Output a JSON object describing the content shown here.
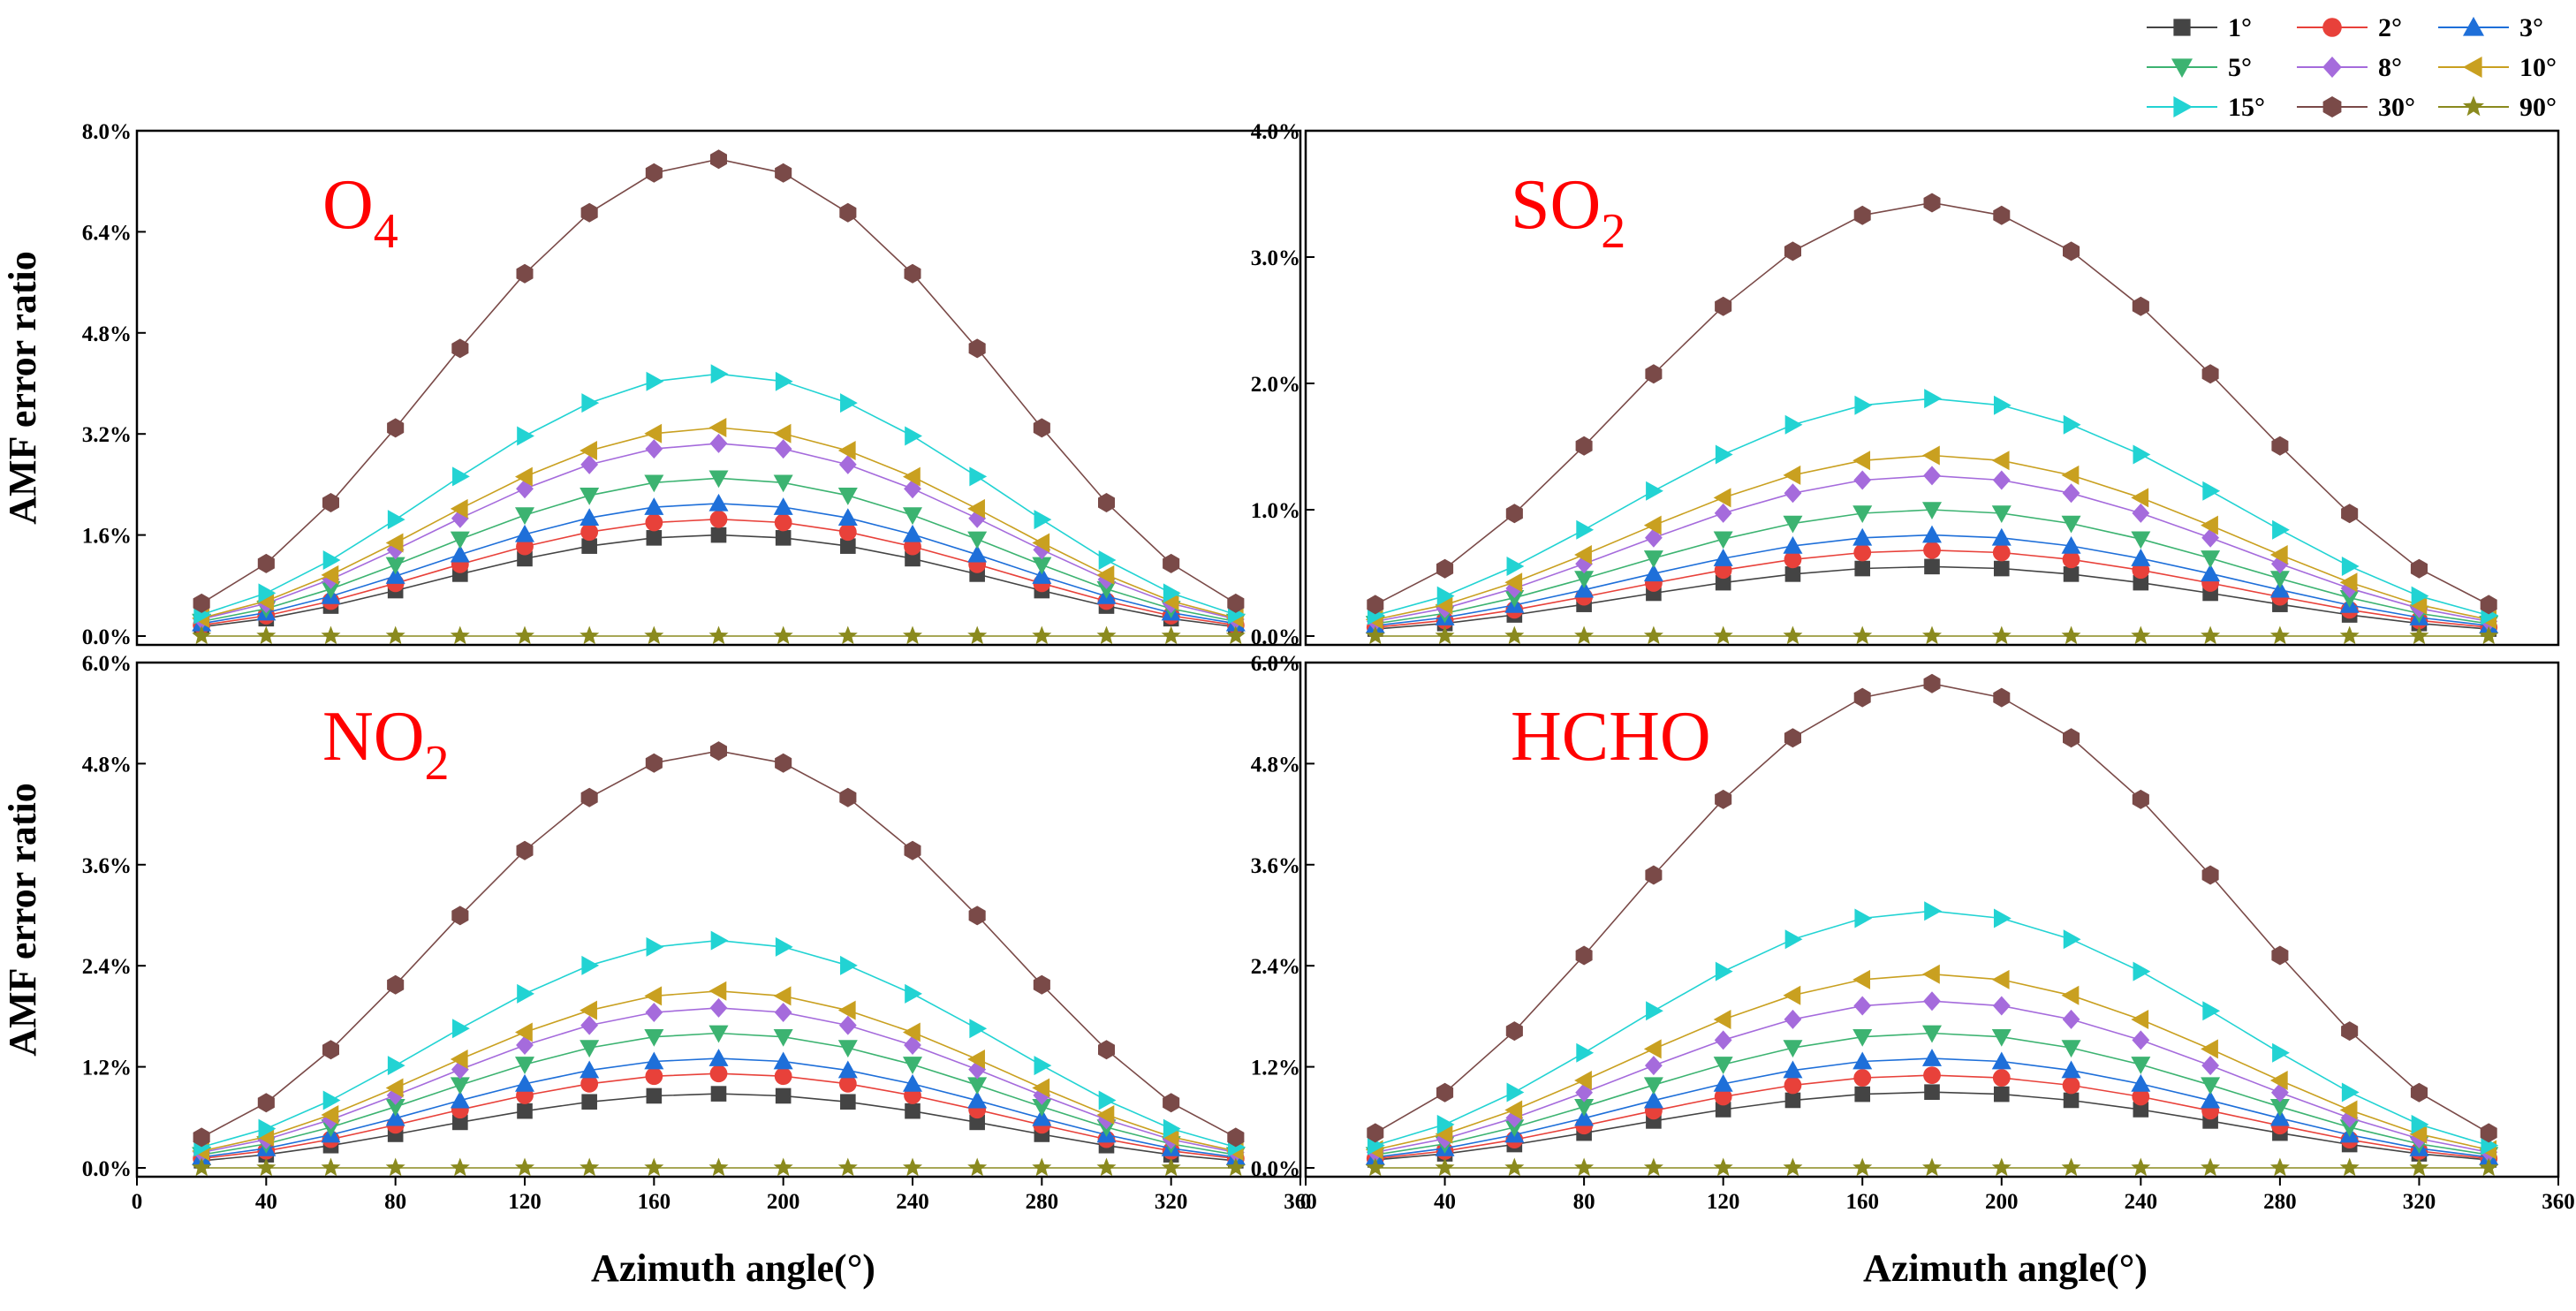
{
  "chart_data": {
    "type": "line",
    "x": [
      20,
      40,
      60,
      80,
      100,
      120,
      140,
      160,
      180,
      200,
      220,
      240,
      260,
      280,
      300,
      320,
      340
    ],
    "xlabel": "Azimuth angle(°)",
    "ylabel": "AMF error ratio",
    "xlim": [
      0,
      360
    ],
    "xticks": [
      "0",
      "40",
      "80",
      "120",
      "160",
      "200",
      "240",
      "280",
      "320",
      "360"
    ],
    "legend": {
      "position": "top-right",
      "entries": [
        {
          "label": "1°",
          "color": "#444444",
          "marker": "square"
        },
        {
          "label": "2°",
          "color": "#e8413a",
          "marker": "circle"
        },
        {
          "label": "3°",
          "color": "#1e6fd9",
          "marker": "triangle-up"
        },
        {
          "label": "5°",
          "color": "#3cb371",
          "marker": "triangle-down"
        },
        {
          "label": "8°",
          "color": "#a56bdc",
          "marker": "diamond"
        },
        {
          "label": "10°",
          "color": "#c9a020",
          "marker": "triangle-left"
        },
        {
          "label": "15°",
          "color": "#22d3d3",
          "marker": "triangle-right"
        },
        {
          "label": "30°",
          "color": "#7a4a48",
          "marker": "hexagon"
        },
        {
          "label": "90°",
          "color": "#8a8a1e",
          "marker": "star"
        }
      ]
    },
    "panels": [
      {
        "label_main": "O",
        "label_sub": "4",
        "ylim": [
          0,
          0.08
        ],
        "yticks": [
          "0.0%",
          "1.6%",
          "3.2%",
          "4.8%",
          "6.4%",
          "8.0%"
        ],
        "peaks": [
          0.016,
          0.0185,
          0.021,
          0.025,
          0.0305,
          0.033,
          0.0415,
          0.0755,
          0.0
        ],
        "edge": [
          0.001,
          0.0012,
          0.0014,
          0.0016,
          0.0018,
          0.0019,
          0.0022,
          0.003,
          0.0
        ]
      },
      {
        "label_main": "SO",
        "label_sub": "2",
        "ylim": [
          0,
          0.04
        ],
        "yticks": [
          "0.0%",
          "1.0%",
          "2.0%",
          "3.0%",
          "4.0%"
        ],
        "peaks": [
          0.0055,
          0.0068,
          0.008,
          0.01,
          0.0127,
          0.0143,
          0.0188,
          0.0343,
          0.0
        ],
        "edge": [
          0.0004,
          0.0005,
          0.0006,
          0.0007,
          0.0008,
          0.0009,
          0.0011,
          0.0015,
          0.0
        ]
      },
      {
        "label_main": "NO",
        "label_sub": "2",
        "ylim": [
          0,
          0.06
        ],
        "yticks": [
          "0.0%",
          "1.2%",
          "2.4%",
          "3.6%",
          "4.8%",
          "6.0%"
        ],
        "peaks": [
          0.0088,
          0.0112,
          0.013,
          0.016,
          0.019,
          0.021,
          0.027,
          0.0495,
          0.0
        ],
        "edge": [
          0.0006,
          0.0008,
          0.0009,
          0.0011,
          0.0013,
          0.0014,
          0.0017,
          0.0022,
          0.0
        ]
      },
      {
        "label_main": "HCHO",
        "label_sub": "",
        "ylim": [
          0,
          0.06
        ],
        "yticks": [
          "0.0%",
          "1.2%",
          "2.4%",
          "3.6%",
          "4.8%",
          "6.0%"
        ],
        "peaks": [
          0.009,
          0.011,
          0.013,
          0.016,
          0.0198,
          0.023,
          0.0305,
          0.0575,
          0.0
        ],
        "edge": [
          0.0007,
          0.0008,
          0.0009,
          0.0011,
          0.0013,
          0.0015,
          0.0018,
          0.0025,
          0.0
        ]
      }
    ]
  }
}
